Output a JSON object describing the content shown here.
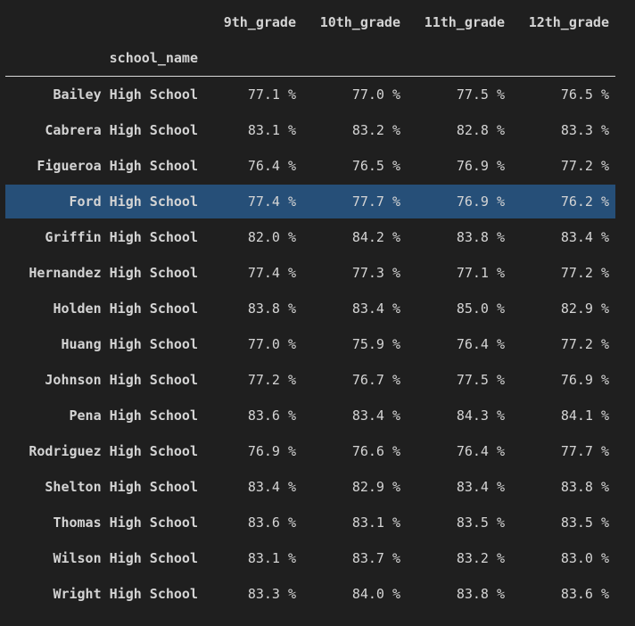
{
  "table": {
    "columns": [
      "9th_grade",
      "10th_grade",
      "11th_grade",
      "12th_grade"
    ],
    "index_name": "school_name",
    "highlighted_row": 3,
    "rows": [
      {
        "school": "Bailey High School",
        "values": [
          "77.1 %",
          "77.0 %",
          "77.5 %",
          "76.5 %"
        ]
      },
      {
        "school": "Cabrera High School",
        "values": [
          "83.1 %",
          "83.2 %",
          "82.8 %",
          "83.3 %"
        ]
      },
      {
        "school": "Figueroa High School",
        "values": [
          "76.4 %",
          "76.5 %",
          "76.9 %",
          "77.2 %"
        ]
      },
      {
        "school": "Ford High School",
        "values": [
          "77.4 %",
          "77.7 %",
          "76.9 %",
          "76.2 %"
        ]
      },
      {
        "school": "Griffin High School",
        "values": [
          "82.0 %",
          "84.2 %",
          "83.8 %",
          "83.4 %"
        ]
      },
      {
        "school": "Hernandez High School",
        "values": [
          "77.4 %",
          "77.3 %",
          "77.1 %",
          "77.2 %"
        ]
      },
      {
        "school": "Holden High School",
        "values": [
          "83.8 %",
          "83.4 %",
          "85.0 %",
          "82.9 %"
        ]
      },
      {
        "school": "Huang High School",
        "values": [
          "77.0 %",
          "75.9 %",
          "76.4 %",
          "77.2 %"
        ]
      },
      {
        "school": "Johnson High School",
        "values": [
          "77.2 %",
          "76.7 %",
          "77.5 %",
          "76.9 %"
        ]
      },
      {
        "school": "Pena High School",
        "values": [
          "83.6 %",
          "83.4 %",
          "84.3 %",
          "84.1 %"
        ]
      },
      {
        "school": "Rodriguez High School",
        "values": [
          "76.9 %",
          "76.6 %",
          "76.4 %",
          "77.7 %"
        ]
      },
      {
        "school": "Shelton High School",
        "values": [
          "83.4 %",
          "82.9 %",
          "83.4 %",
          "83.8 %"
        ]
      },
      {
        "school": "Thomas High School",
        "values": [
          "83.6 %",
          "83.1 %",
          "83.5 %",
          "83.5 %"
        ]
      },
      {
        "school": "Wilson High School",
        "values": [
          "83.1 %",
          "83.7 %",
          "83.2 %",
          "83.0 %"
        ]
      },
      {
        "school": "Wright High School",
        "values": [
          "83.3 %",
          "84.0 %",
          "83.8 %",
          "83.6 %"
        ]
      }
    ]
  },
  "colors": {
    "background": "#1f1f1f",
    "text": "#d4d4d4",
    "highlight": "#264f78",
    "divider": "#d8d8d8"
  }
}
